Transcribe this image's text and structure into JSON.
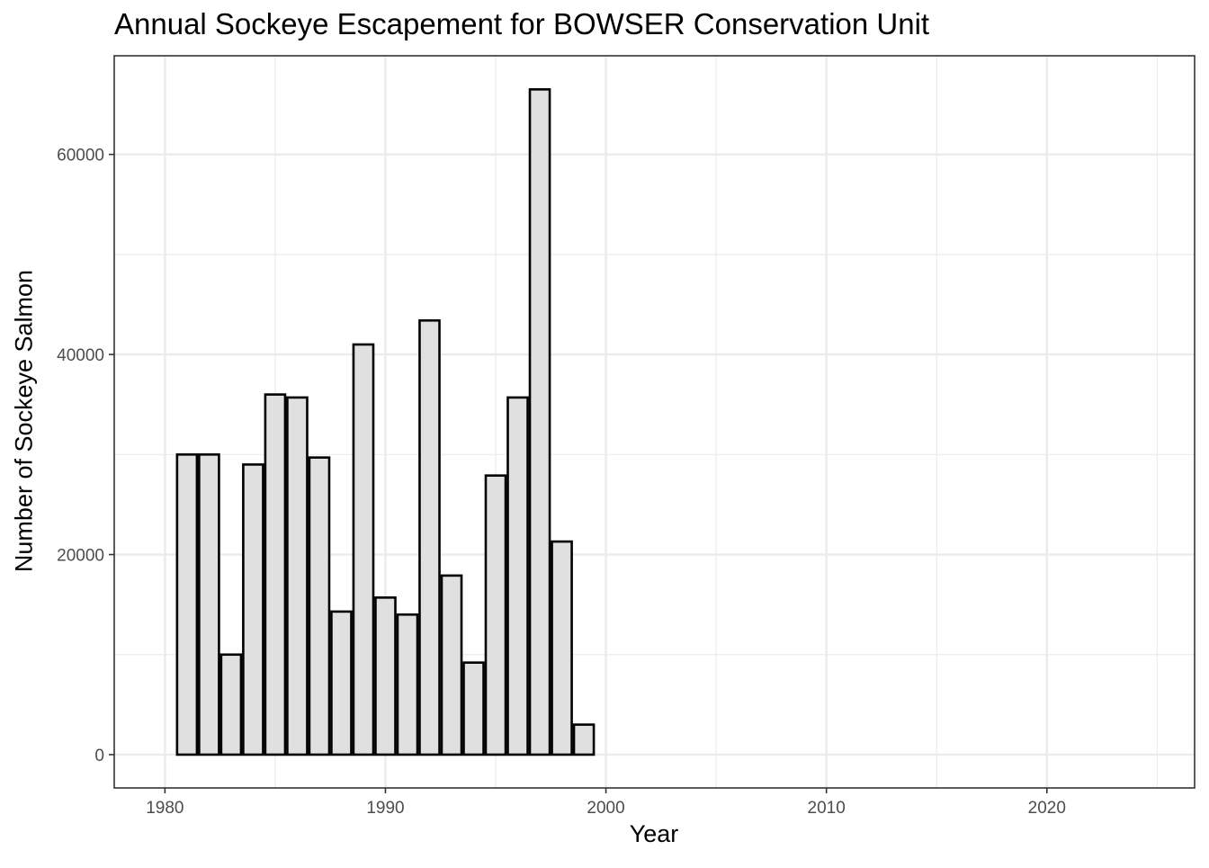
{
  "chart_data": {
    "type": "bar",
    "title": "Annual Sockeye Escapement for BOWSER Conservation Unit",
    "xlabel": "Year",
    "ylabel": "Number of Sockeye Salmon",
    "x": [
      1981,
      1982,
      1983,
      1984,
      1985,
      1986,
      1987,
      1988,
      1989,
      1990,
      1991,
      1992,
      1993,
      1994,
      1995,
      1996,
      1997,
      1998,
      1999
    ],
    "values": [
      30000,
      30000,
      10000,
      29000,
      36000,
      35700,
      29700,
      14300,
      41000,
      15700,
      14000,
      43400,
      17900,
      9200,
      27900,
      35700,
      66500,
      21300,
      3000
    ],
    "xlim": [
      1977.7,
      2026.7
    ],
    "ylim": [
      -3330,
      69860
    ],
    "x_ticks": [
      "1980",
      "1990",
      "2000",
      "2010",
      "2020"
    ],
    "y_ticks": [
      "0",
      "20000",
      "40000",
      "60000"
    ],
    "grid": true,
    "bar_fill": "#e0e0e0",
    "bar_outline": "#000000",
    "grid_color": "#ebebeb",
    "tick_text_color": "#4d4d4d"
  }
}
